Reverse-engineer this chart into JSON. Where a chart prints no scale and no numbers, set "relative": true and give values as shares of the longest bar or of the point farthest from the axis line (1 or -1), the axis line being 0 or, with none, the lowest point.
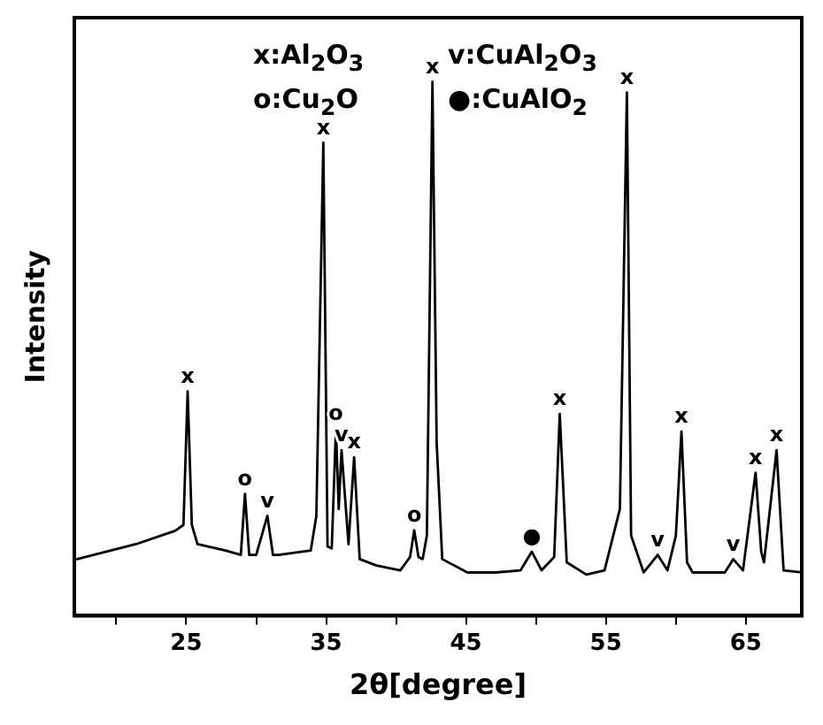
{
  "chart_data": {
    "type": "line",
    "relative": true,
    "xlabel": "2θ[degree]",
    "ylabel": "Intensity",
    "xlim": [
      17,
      69
    ],
    "xticks": [
      {
        "value": 20,
        "label": null
      },
      25,
      {
        "value": 30,
        "label": null
      },
      35,
      {
        "value": 40,
        "label": null
      },
      45,
      {
        "value": 50,
        "label": null
      },
      55,
      {
        "value": 60,
        "label": null
      },
      65
    ],
    "x": [
      17.2,
      21.4,
      24.2,
      24.8,
      25.1,
      25.4,
      25.8,
      27.8,
      28.9,
      29.2,
      29.5,
      30.0,
      30.8,
      31.2,
      31.6,
      33.9,
      34.3,
      34.8,
      35.1,
      35.4,
      35.7,
      35.9,
      36.1,
      36.6,
      37.0,
      37.4,
      38.6,
      40.3,
      41.0,
      41.3,
      41.6,
      41.9,
      42.2,
      42.6,
      42.9,
      43.3,
      45.1,
      47.1,
      48.9,
      49.7,
      50.4,
      51.3,
      51.7,
      52.2,
      53.6,
      54.9,
      56.0,
      56.5,
      56.8,
      57.7,
      58.7,
      59.4,
      60.0,
      60.4,
      60.8,
      61.2,
      63.5,
      64.1,
      64.8,
      65.7,
      66.1,
      66.3,
      67.2,
      67.7,
      69.0
    ],
    "series": [
      {
        "color": "#000000",
        "values": [
          0.106,
          0.134,
          0.159,
          0.17,
          0.42,
          0.17,
          0.134,
          0.122,
          0.114,
          0.228,
          0.114,
          0.114,
          0.187,
          0.114,
          0.114,
          0.122,
          0.187,
          0.886,
          0.13,
          0.126,
          0.35,
          0.2,
          0.31,
          0.134,
          0.297,
          0.106,
          0.094,
          0.085,
          0.11,
          0.16,
          0.11,
          0.106,
          0.15,
          1.0,
          0.325,
          0.106,
          0.081,
          0.081,
          0.085,
          0.12,
          0.085,
          0.11,
          0.378,
          0.1,
          0.077,
          0.085,
          0.2,
          0.98,
          0.15,
          0.081,
          0.114,
          0.085,
          0.15,
          0.345,
          0.1,
          0.081,
          0.081,
          0.106,
          0.085,
          0.268,
          0.12,
          0.1,
          0.31,
          0.085,
          0.081
        ]
      }
    ],
    "marker": "none",
    "grid": false,
    "legend": false,
    "annotations": [
      "x:Al$_{2}$O$_{3}$",
      "v:CuAl$_{2}$O$_{3}$",
      "o:Cu$_{2}$O",
      "●:CuAlO$_{2}$",
      {
        "text": "x",
        "x": 25.1,
        "y": 0.42
      },
      {
        "text": "o",
        "x": 29.2,
        "y": 0.228
      },
      {
        "text": "v",
        "x": 30.8,
        "y": 0.187
      },
      {
        "text": "x",
        "x": 34.8,
        "y": 0.886
      },
      {
        "text": "o",
        "x": 35.7,
        "y": 0.35
      },
      {
        "text": "v",
        "x": 36.1,
        "y": 0.31
      },
      {
        "text": "x",
        "x": 37.0,
        "y": 0.297
      },
      {
        "text": "o",
        "x": 41.3,
        "y": 0.16
      },
      {
        "text": "x",
        "x": 42.6,
        "y": 1.0
      },
      {
        "text": "●",
        "x": 49.7,
        "y": 0.12
      },
      {
        "text": "x",
        "x": 51.7,
        "y": 0.378
      },
      {
        "text": "x",
        "x": 56.5,
        "y": 0.98
      },
      {
        "text": "v",
        "x": 58.7,
        "y": 0.114
      },
      {
        "text": "x",
        "x": 60.4,
        "y": 0.345
      },
      {
        "text": "v",
        "x": 64.1,
        "y": 0.106
      },
      {
        "text": "x",
        "x": 65.7,
        "y": 0.268
      },
      {
        "text": "x",
        "x": 67.2,
        "y": 0.31
      }
    ]
  }
}
